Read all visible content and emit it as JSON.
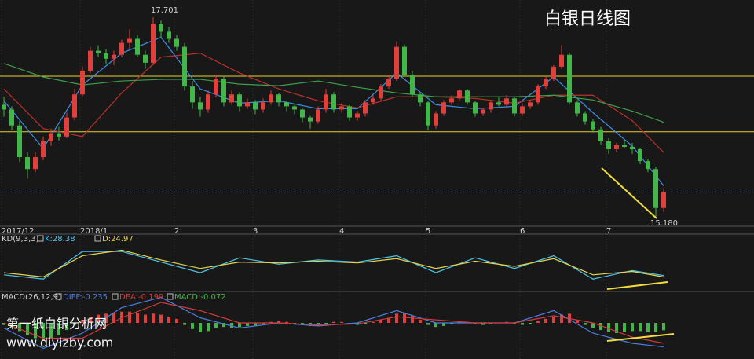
{
  "chart_data": [
    {
      "type": "candlestick",
      "title": "白银日线图",
      "categories": [
        "2017/12",
        null,
        null,
        null,
        null,
        null,
        null,
        null,
        null,
        null,
        "2018/1",
        null,
        null,
        null,
        null,
        null,
        null,
        null,
        null,
        null,
        null,
        null,
        "2",
        null,
        null,
        null,
        null,
        null,
        null,
        null,
        null,
        null,
        "3",
        null,
        null,
        null,
        null,
        null,
        null,
        null,
        null,
        null,
        null,
        "4",
        null,
        null,
        null,
        null,
        null,
        null,
        null,
        null,
        null,
        null,
        "5",
        null,
        null,
        null,
        null,
        null,
        null,
        null,
        null,
        null,
        null,
        null,
        "6",
        null,
        null,
        null,
        null,
        null,
        null,
        null,
        null,
        null,
        null,
        "7",
        null,
        null,
        null,
        null,
        null,
        null,
        null
      ],
      "open": [
        16.6,
        16.54,
        16.34,
        15.94,
        15.79,
        15.94,
        16.14,
        16.24,
        16.2,
        16.44,
        16.73,
        17.03,
        17.28,
        17.25,
        17.18,
        17.23,
        17.38,
        17.43,
        17.23,
        17.13,
        17.62,
        17.52,
        17.43,
        17.33,
        16.83,
        16.63,
        16.54,
        16.73,
        16.93,
        16.63,
        16.73,
        16.58,
        16.63,
        16.54,
        16.63,
        16.73,
        16.63,
        16.58,
        16.54,
        16.44,
        16.39,
        16.54,
        16.73,
        16.54,
        16.58,
        16.44,
        16.49,
        16.63,
        16.68,
        16.83,
        16.93,
        17.33,
        16.98,
        16.73,
        16.63,
        16.34,
        16.49,
        16.63,
        16.68,
        16.78,
        16.63,
        16.49,
        16.54,
        16.63,
        16.6,
        16.68,
        16.49,
        16.58,
        16.63,
        16.83,
        16.93,
        17.08,
        17.23,
        16.63,
        16.49,
        16.39,
        16.29,
        16.14,
        16.04,
        16.09,
        16.07,
        16.04,
        15.89,
        15.79,
        15.3
      ],
      "high": [
        16.7,
        16.58,
        16.4,
        16.0,
        16.0,
        16.2,
        16.3,
        16.32,
        16.5,
        16.8,
        17.08,
        17.33,
        17.35,
        17.3,
        17.28,
        17.42,
        17.55,
        17.48,
        17.28,
        17.701,
        17.66,
        17.58,
        17.48,
        17.38,
        16.9,
        16.7,
        16.78,
        16.98,
        16.96,
        16.78,
        16.76,
        16.68,
        16.66,
        16.68,
        16.78,
        16.75,
        16.65,
        16.6,
        16.56,
        16.46,
        16.58,
        16.8,
        16.76,
        16.62,
        16.6,
        16.52,
        16.66,
        16.72,
        16.86,
        16.98,
        17.4,
        17.36,
        17.02,
        16.76,
        16.65,
        16.52,
        16.66,
        16.72,
        16.8,
        16.8,
        16.65,
        16.56,
        16.66,
        16.7,
        16.72,
        16.7,
        16.62,
        16.66,
        16.86,
        16.96,
        17.1,
        17.35,
        17.26,
        16.66,
        16.52,
        16.42,
        16.32,
        16.18,
        16.12,
        16.16,
        16.12,
        16.06,
        15.92,
        15.82,
        15.55
      ],
      "low": [
        16.45,
        16.28,
        15.88,
        15.67,
        15.75,
        15.9,
        16.08,
        16.15,
        16.18,
        16.4,
        16.7,
        17.0,
        17.2,
        17.12,
        17.1,
        17.2,
        17.3,
        17.2,
        17.05,
        17.1,
        17.45,
        17.38,
        17.28,
        16.78,
        16.55,
        16.45,
        16.5,
        16.7,
        16.58,
        16.6,
        16.52,
        16.55,
        16.48,
        16.5,
        16.6,
        16.58,
        16.52,
        16.48,
        16.38,
        16.3,
        16.36,
        16.5,
        16.5,
        16.5,
        16.4,
        16.4,
        16.45,
        16.6,
        16.65,
        16.8,
        16.9,
        16.95,
        16.7,
        16.58,
        16.28,
        16.3,
        16.46,
        16.6,
        16.65,
        16.6,
        16.45,
        16.46,
        16.5,
        16.58,
        16.58,
        16.45,
        16.46,
        16.55,
        16.6,
        16.8,
        16.9,
        17.05,
        16.6,
        16.45,
        16.35,
        16.25,
        16.1,
        15.98,
        16.0,
        16.05,
        15.98,
        15.85,
        15.75,
        15.18,
        15.25
      ],
      "close": [
        16.54,
        16.34,
        15.94,
        15.79,
        15.94,
        16.14,
        16.24,
        16.2,
        16.44,
        16.73,
        17.03,
        17.28,
        17.25,
        17.18,
        17.23,
        17.38,
        17.43,
        17.23,
        17.13,
        17.62,
        17.52,
        17.43,
        17.33,
        16.83,
        16.63,
        16.54,
        16.73,
        16.93,
        16.63,
        16.73,
        16.58,
        16.63,
        16.54,
        16.63,
        16.73,
        16.63,
        16.58,
        16.54,
        16.44,
        16.39,
        16.54,
        16.73,
        16.54,
        16.58,
        16.44,
        16.49,
        16.63,
        16.68,
        16.83,
        16.93,
        17.33,
        16.98,
        16.73,
        16.63,
        16.34,
        16.49,
        16.63,
        16.68,
        16.78,
        16.63,
        16.49,
        16.54,
        16.63,
        16.6,
        16.68,
        16.49,
        16.58,
        16.63,
        16.83,
        16.93,
        17.08,
        17.23,
        16.63,
        16.49,
        16.39,
        16.29,
        16.14,
        16.04,
        16.09,
        16.07,
        16.04,
        15.89,
        15.79,
        15.3,
        15.5
      ],
      "up_color": "#e0403c",
      "down_color": "#43b649",
      "ylim": [
        15.07,
        17.92
      ],
      "hlines": [
        16.96,
        16.26
      ],
      "hline_color": "#e6d22e",
      "series": [
        {
          "color": "#3b8fe8",
          "x": [
            0,
            5,
            10,
            15,
            20,
            25,
            30,
            35,
            40,
            45,
            50,
            55,
            60,
            65,
            70,
            75,
            80,
            84
          ],
          "values": [
            16.65,
            16.05,
            16.85,
            17.25,
            17.45,
            16.8,
            16.62,
            16.65,
            16.55,
            16.55,
            17.0,
            16.6,
            16.55,
            16.58,
            16.95,
            16.5,
            16.08,
            15.58
          ]
        },
        {
          "color": "#b8322a",
          "x": [
            0,
            5,
            10,
            15,
            20,
            25,
            30,
            35,
            40,
            45,
            50,
            55,
            60,
            65,
            70,
            75,
            80,
            84
          ],
          "values": [
            16.8,
            16.3,
            16.2,
            16.75,
            17.2,
            17.25,
            17.0,
            16.8,
            16.65,
            16.56,
            16.7,
            16.7,
            16.68,
            16.62,
            16.72,
            16.72,
            16.4,
            16.0
          ]
        },
        {
          "color": "#3e9e4a",
          "x": [
            0,
            5,
            10,
            15,
            20,
            25,
            30,
            35,
            40,
            45,
            50,
            55,
            60,
            65,
            70,
            75,
            80,
            84
          ],
          "values": [
            17.12,
            16.95,
            16.85,
            16.9,
            16.92,
            16.92,
            16.86,
            16.84,
            16.9,
            16.82,
            16.75,
            16.7,
            16.7,
            16.7,
            16.72,
            16.66,
            16.52,
            16.38
          ]
        }
      ],
      "annotations": [
        {
          "value": 17.701,
          "label": "17.701"
        },
        {
          "value": 15.18,
          "label": "15.180"
        }
      ]
    },
    {
      "type": "line",
      "label": "KD(9,3,3)",
      "ylim": [
        0,
        100
      ],
      "series": [
        {
          "name": "K:28.38",
          "color": "#4fc6ea",
          "x": [
            0,
            5,
            10,
            15,
            20,
            25,
            30,
            35,
            40,
            45,
            50,
            55,
            60,
            65,
            70,
            75,
            80,
            84
          ],
          "values": [
            30,
            20,
            85,
            85,
            60,
            35,
            70,
            55,
            65,
            60,
            75,
            35,
            70,
            45,
            75,
            20,
            40,
            28.38
          ]
        },
        {
          "name": "D:24.97",
          "color": "#e6d44e",
          "x": [
            0,
            5,
            10,
            15,
            20,
            25,
            30,
            35,
            40,
            45,
            50,
            55,
            60,
            65,
            70,
            75,
            80,
            84
          ],
          "values": [
            35,
            25,
            75,
            88,
            65,
            45,
            60,
            58,
            62,
            58,
            68,
            45,
            62,
            50,
            68,
            30,
            38,
            24.97
          ]
        }
      ]
    },
    {
      "type": "macd",
      "label": "MACD(26,12,9)",
      "ylim": [
        -0.3,
        0.2
      ],
      "series": [
        {
          "name": "DIFF:-0.235",
          "color": "#4a7ee0",
          "x": [
            0,
            5,
            10,
            15,
            20,
            25,
            30,
            35,
            40,
            45,
            50,
            55,
            60,
            65,
            70,
            75,
            80,
            84
          ],
          "values": [
            -0.05,
            -0.25,
            -0.1,
            0.15,
            0.25,
            0.05,
            -0.05,
            0.0,
            -0.03,
            0.0,
            0.12,
            0.0,
            0.0,
            0.0,
            0.12,
            -0.1,
            -0.2,
            -0.235
          ]
        },
        {
          "name": "DEA:-0.199",
          "color": "#d23a3a",
          "x": [
            0,
            5,
            10,
            15,
            20,
            25,
            30,
            35,
            40,
            45,
            50,
            55,
            60,
            65,
            70,
            75,
            80,
            84
          ],
          "values": [
            0.0,
            -0.15,
            -0.15,
            0.05,
            0.2,
            0.12,
            0.0,
            0.0,
            -0.02,
            -0.01,
            0.06,
            0.03,
            0.0,
            0.0,
            0.07,
            0.0,
            -0.14,
            -0.199
          ]
        }
      ],
      "bars": {
        "name": "MACD:-0.072",
        "color": "#43b649",
        "up_color": "#e0403c",
        "down_color": "#43b649",
        "values": [
          -0.02,
          -0.04,
          -0.08,
          -0.12,
          -0.15,
          -0.17,
          -0.16,
          -0.12,
          -0.07,
          -0.02,
          0.03,
          0.06,
          0.08,
          0.09,
          0.1,
          0.11,
          0.11,
          0.1,
          0.08,
          0.09,
          0.08,
          0.06,
          0.04,
          -0.02,
          -0.06,
          -0.09,
          -0.08,
          -0.05,
          -0.04,
          -0.05,
          -0.04,
          -0.03,
          -0.03,
          -0.02,
          0.01,
          0.02,
          0.01,
          -0.01,
          -0.02,
          -0.03,
          -0.03,
          -0.01,
          0.01,
          0.01,
          -0.01,
          -0.02,
          -0.01,
          0.01,
          0.03,
          0.05,
          0.09,
          0.1,
          0.07,
          0.03,
          -0.02,
          -0.04,
          -0.03,
          -0.01,
          0.01,
          0.01,
          -0.01,
          -0.02,
          -0.01,
          0.0,
          0.01,
          -0.01,
          -0.02,
          -0.01,
          0.02,
          0.04,
          0.06,
          0.08,
          0.09,
          0.03,
          -0.02,
          -0.05,
          -0.07,
          -0.09,
          -0.1,
          -0.09,
          -0.08,
          -0.08,
          -0.09,
          -0.09,
          -0.072
        ]
      }
    }
  ],
  "watermark": {
    "title": "第一纸白银分析网",
    "url": "www.diyizby.com"
  }
}
